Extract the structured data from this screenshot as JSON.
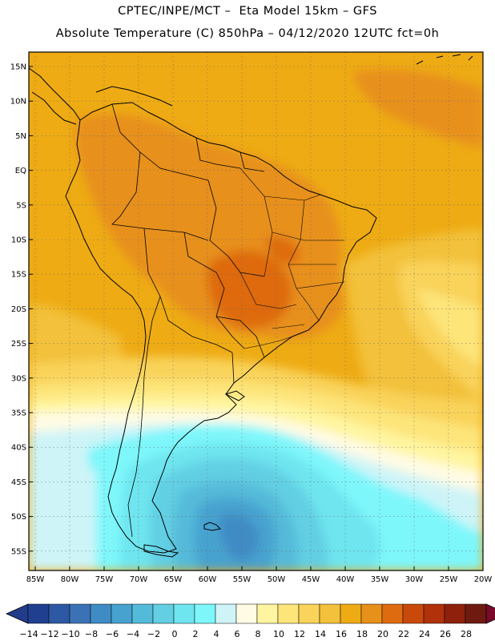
{
  "title_line1": "CPTEC/INPE/MCT –  Eta Model 15km – GFS",
  "title_line2": "Absolute Temperature (C) 850hPa – 04/12/2020 12UTC fct=0h",
  "lat_labels": [
    "15N",
    "10N",
    "5N",
    "EQ",
    "5S",
    "10S",
    "15S",
    "20S",
    "25S",
    "30S",
    "35S",
    "40S",
    "45S",
    "50S",
    "55S"
  ],
  "lon_labels": [
    "85W",
    "80W",
    "75W",
    "70W",
    "65W",
    "60W",
    "55W",
    "50W",
    "45W",
    "40W",
    "35W",
    "30W",
    "25W",
    "20W"
  ],
  "colorbar": {
    "labels": [
      "−14",
      "−12",
      "−10",
      "−8",
      "−6",
      "−4",
      "−2",
      "0",
      "2",
      "4",
      "6",
      "8",
      "10",
      "12",
      "14",
      "16",
      "18",
      "20",
      "22",
      "24",
      "26",
      "28"
    ],
    "colors": [
      "#213f8f",
      "#2d58a3",
      "#3a72b5",
      "#3f8bc4",
      "#47a2cf",
      "#54bad9",
      "#62cfe3",
      "#6ee5ef",
      "#7ef7fb",
      "#cef4f8",
      "#fffbe4",
      "#fff5a0",
      "#fde57a",
      "#f9d35a",
      "#f3c13b",
      "#eeab14",
      "#e7901a",
      "#de6b10",
      "#c9490a",
      "#b0310a",
      "#8e200c",
      "#6e1a10"
    ],
    "under_color": "#203c8a",
    "over_color": "#7a0a2a"
  }
}
